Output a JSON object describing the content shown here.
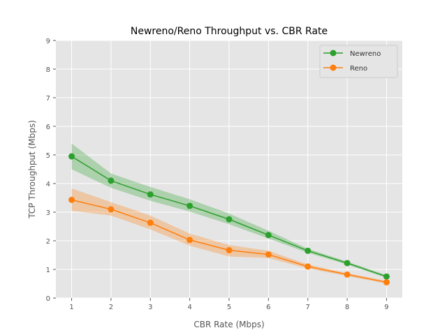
{
  "chart_data": {
    "type": "line",
    "title": "Newreno/Reno Throughput vs. CBR Rate",
    "xlabel": "CBR Rate (Mbps)",
    "ylabel": "TCP Throughput (Mbps)",
    "x": [
      1,
      2,
      3,
      4,
      5,
      6,
      7,
      8,
      9
    ],
    "xlim": [
      0.6,
      9.4
    ],
    "ylim": [
      0,
      9
    ],
    "xticks": [
      1,
      2,
      3,
      4,
      5,
      6,
      7,
      8,
      9
    ],
    "yticks": [
      0,
      1,
      2,
      3,
      4,
      5,
      6,
      7,
      8,
      9
    ],
    "grid": true,
    "legend_position": "top-right",
    "series": [
      {
        "name": "Newreno",
        "color": "#2ca02c",
        "values": [
          4.95,
          4.1,
          3.62,
          3.22,
          2.75,
          2.2,
          1.65,
          1.22,
          0.75
        ],
        "lower": [
          4.5,
          3.85,
          3.4,
          3.02,
          2.58,
          2.08,
          1.58,
          1.17,
          0.7
        ],
        "upper": [
          5.4,
          4.35,
          3.88,
          3.45,
          2.95,
          2.35,
          1.72,
          1.27,
          0.8
        ]
      },
      {
        "name": "Reno",
        "color": "#ff7f0e",
        "values": [
          3.43,
          3.1,
          2.63,
          2.03,
          1.67,
          1.52,
          1.1,
          0.82,
          0.55
        ],
        "lower": [
          3.05,
          2.88,
          2.4,
          1.83,
          1.45,
          1.4,
          1.03,
          0.77,
          0.5
        ],
        "upper": [
          3.83,
          3.35,
          2.88,
          2.25,
          1.85,
          1.65,
          1.17,
          0.87,
          0.6
        ]
      }
    ]
  }
}
